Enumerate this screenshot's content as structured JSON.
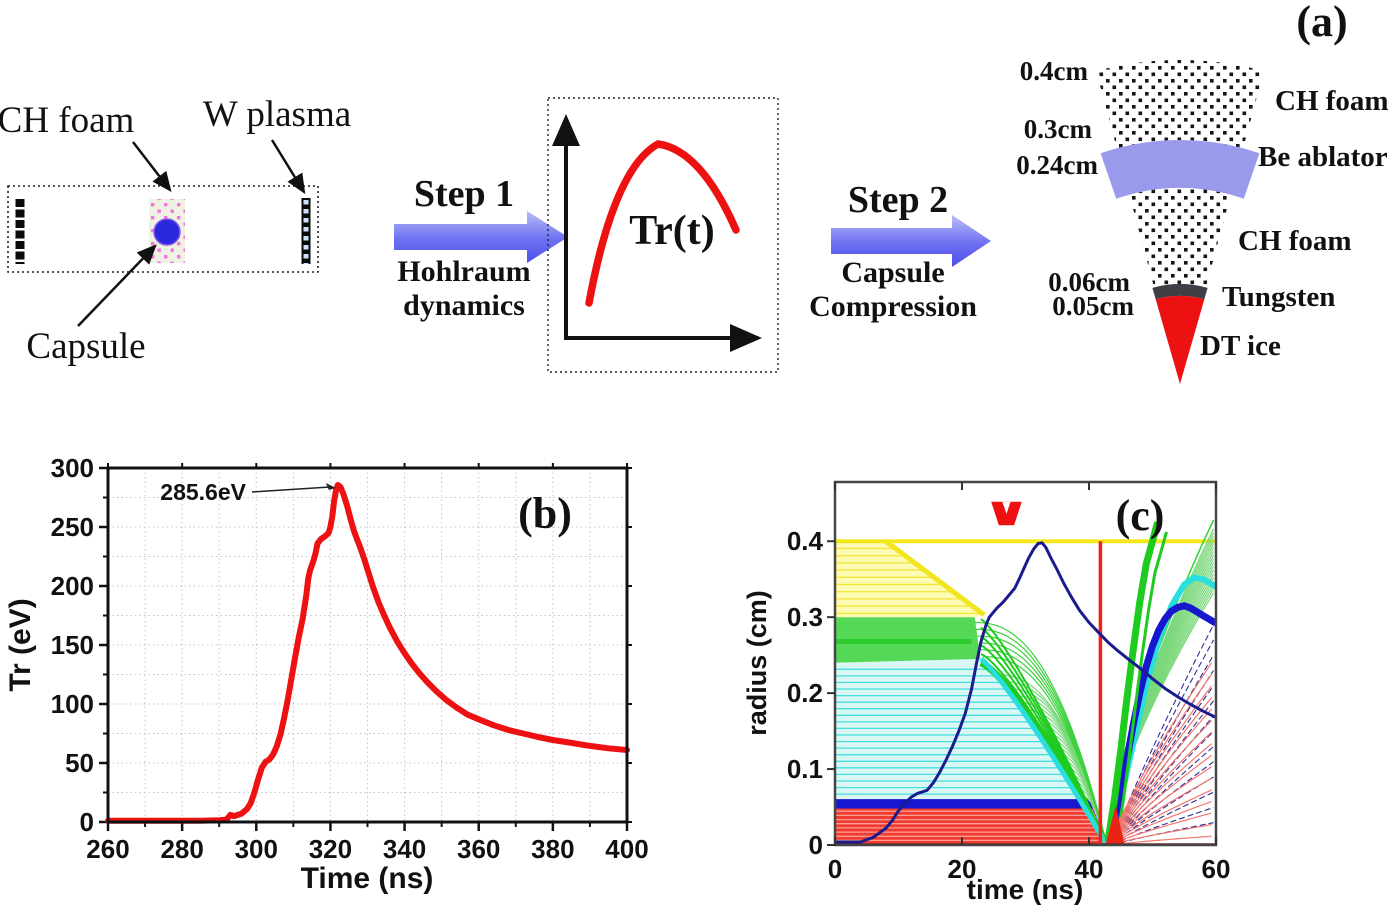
{
  "schematic": {
    "labels": {
      "ch_foam": "CH foam",
      "w_plasma": "W plasma",
      "capsule": "Capsule"
    },
    "step1": {
      "title": "Step 1",
      "caption1": "Hohlraum",
      "caption2": "dynamics"
    },
    "step2": {
      "title": "Step 2",
      "caption1": "Capsule",
      "caption2": "Compression"
    },
    "tr_sketch_label": "Tr(t)",
    "arrow_color_light": "#b7bdf6",
    "arrow_color_dark": "#4d4fe8"
  },
  "capsule_diagram": {
    "panel_label": "(a)",
    "radii_labels": [
      "0.4cm",
      "0.3cm",
      "0.24cm",
      "0.06cm",
      "0.05cm"
    ],
    "layer_labels": [
      "CH foam",
      "Be ablator",
      "CH foam",
      "Tungsten",
      "DT ice"
    ],
    "colors": {
      "be_ablator": "#9a9aec",
      "tungsten": "#3f3f46",
      "dt_ice": "#ee1111"
    }
  },
  "chart_data": [
    {
      "type": "line",
      "panel": "(b)",
      "xlabel": "Time (ns)",
      "ylabel": "Tr (eV)",
      "xlim": [
        260,
        400
      ],
      "ylim": [
        0,
        300
      ],
      "xticks": [
        260,
        280,
        300,
        320,
        340,
        360,
        380,
        400
      ],
      "yticks": [
        0,
        50,
        100,
        150,
        200,
        250,
        300
      ],
      "xminor_step": 10,
      "yminor_step": 25,
      "grid": true,
      "line_color": "#ee1111",
      "annotation": {
        "text": "285.6eV",
        "peak_t": 322,
        "peak_v": 285.6
      },
      "series": [
        {
          "name": "Tr",
          "points": [
            [
              260,
              1
            ],
            [
              285,
              1
            ],
            [
              290,
              1.5
            ],
            [
              292,
              2
            ],
            [
              293,
              6
            ],
            [
              294,
              5
            ],
            [
              296,
              7
            ],
            [
              297.5,
              11
            ],
            [
              298.5,
              16
            ],
            [
              299.5,
              25
            ],
            [
              300.5,
              36
            ],
            [
              301.5,
              46
            ],
            [
              302.5,
              51
            ],
            [
              303.5,
              53
            ],
            [
              304.5,
              57
            ],
            [
              305.5,
              64
            ],
            [
              306.5,
              74
            ],
            [
              307.5,
              88
            ],
            [
              308.5,
              104
            ],
            [
              309.5,
              122
            ],
            [
              310.5,
              140
            ],
            [
              311.5,
              157
            ],
            [
              312.5,
              172
            ],
            [
              313.5,
              192
            ],
            [
              314,
              206
            ],
            [
              314.5,
              213
            ],
            [
              315.5,
              222
            ],
            [
              316,
              228
            ],
            [
              316.5,
              236
            ],
            [
              317.5,
              240
            ],
            [
              318.5,
              242
            ],
            [
              319.5,
              245
            ],
            [
              320,
              250
            ],
            [
              320.5,
              259
            ],
            [
              321,
              272
            ],
            [
              321.5,
              281
            ],
            [
              322,
              285.6
            ],
            [
              322.7,
              284
            ],
            [
              323.5,
              278
            ],
            [
              324.5,
              268
            ],
            [
              325.5,
              256
            ],
            [
              326.3,
              247
            ],
            [
              327,
              241
            ],
            [
              328,
              233
            ],
            [
              329,
              224
            ],
            [
              330,
              214
            ],
            [
              331.5,
              199
            ],
            [
              333,
              186
            ],
            [
              334.5,
              175
            ],
            [
              336,
              165
            ],
            [
              338,
              153
            ],
            [
              340,
              143
            ],
            [
              342,
              134
            ],
            [
              344,
              126
            ],
            [
              346,
              119
            ],
            [
              348.5,
              111
            ],
            [
              351,
              104
            ],
            [
              354,
              97
            ],
            [
              357,
              91
            ],
            [
              360,
              87
            ],
            [
              364,
              82
            ],
            [
              368,
              78
            ],
            [
              372,
              75
            ],
            [
              376,
              72
            ],
            [
              380,
              69.5
            ],
            [
              385,
              67
            ],
            [
              390,
              64.5
            ],
            [
              395,
              62.5
            ],
            [
              400,
              61
            ]
          ]
        }
      ]
    },
    {
      "type": "line",
      "panel": "(c)",
      "xlabel": "time (ns)",
      "ylabel": "radius (cm)",
      "xlim": [
        0,
        60
      ],
      "ylim": [
        0,
        0.478
      ],
      "xticks": [
        0,
        20,
        40,
        60
      ],
      "yticks": [
        0,
        0.1,
        0.2,
        0.3,
        0.4
      ],
      "layers": [
        {
          "name": "DT ice",
          "r": [
            0,
            0.05
          ],
          "fill": "#ef3b30",
          "line": "#ff9d94"
        },
        {
          "name": "Tungsten",
          "r": [
            0.05,
            0.06
          ],
          "fill": "#1717cf",
          "line": "#1717cf"
        },
        {
          "name": "CH foam",
          "r": [
            0.06,
            0.24
          ],
          "fill": "#d9f7f5",
          "line": "#46dede"
        },
        {
          "name": "Be ablator",
          "r": [
            0.24,
            0.3
          ],
          "fill": "#55d855",
          "line": "#2ecb2e"
        },
        {
          "name": "CH foam outer",
          "r": [
            0.3,
            0.4
          ],
          "fill": "#fdfbb4",
          "line": "#f1e83c"
        }
      ],
      "events": {
        "stagnation_ns": 42.8,
        "vline_ns": 41.8
      },
      "streak": {
        "t1": 8,
        "r1": 0.4,
        "t2": 23.5,
        "r2": 0.303
      },
      "shell": {
        "t0": 23,
        "dur": 19.8,
        "r0": 0.24,
        "p": 1.3
      },
      "front": {
        "t0": 23,
        "dur": 19.8,
        "r0": 0.245,
        "p": 1.15
      },
      "foam_tracks": {
        "count": 18,
        "r0_start": 0.068,
        "r0_step": 0.0092
      },
      "green_tracks": [
        0.248,
        0.257,
        0.266,
        0.275,
        0.284,
        0.293
      ],
      "navy_fan": {
        "count": 14,
        "t0": 43.6,
        "r_end_min": 0.03,
        "r_end_step": 0.0205
      },
      "red_fan": {
        "count": 16,
        "t0": 43.3,
        "r_end_min": 0.012,
        "r_end_step": 0.0158
      },
      "rebounds": {
        "blue": [
          [
            43.2,
            0.004
          ],
          [
            44,
            0.03
          ],
          [
            45,
            0.07
          ],
          [
            46,
            0.115
          ],
          [
            47,
            0.16
          ],
          [
            48,
            0.2
          ],
          [
            49,
            0.235
          ],
          [
            50,
            0.262
          ],
          [
            51,
            0.283
          ],
          [
            52,
            0.298
          ],
          [
            53,
            0.308
          ],
          [
            54,
            0.313
          ],
          [
            55,
            0.315
          ],
          [
            56,
            0.312
          ],
          [
            57,
            0.307
          ],
          [
            58,
            0.302
          ],
          [
            59,
            0.297
          ],
          [
            60,
            0.292
          ]
        ],
        "cyan": [
          [
            43.4,
            0.004
          ],
          [
            45,
            0.06
          ],
          [
            47,
            0.135
          ],
          [
            49,
            0.21
          ],
          [
            51,
            0.27
          ],
          [
            53,
            0.315
          ],
          [
            55,
            0.343
          ],
          [
            56.5,
            0.352
          ],
          [
            58,
            0.35
          ],
          [
            60,
            0.34
          ]
        ],
        "green": [
          [
            43,
            0.005
          ],
          [
            44,
            0.06
          ],
          [
            45,
            0.125
          ],
          [
            46,
            0.195
          ],
          [
            47,
            0.26
          ],
          [
            48,
            0.32
          ],
          [
            49,
            0.37
          ],
          [
            50,
            0.4
          ],
          [
            50.8,
            0.425
          ]
        ]
      },
      "marker_points": [
        [
          24.6,
          0.452
        ],
        [
          29.4,
          0.452
        ],
        [
          28.2,
          0.421
        ],
        [
          25.8,
          0.421
        ]
      ],
      "trajectory": [
        [
          0,
          0.004
        ],
        [
          4,
          0.004
        ],
        [
          6,
          0.01
        ],
        [
          8,
          0.022
        ],
        [
          9,
          0.032
        ],
        [
          10,
          0.045
        ],
        [
          11,
          0.055
        ],
        [
          12,
          0.063
        ],
        [
          13,
          0.068
        ],
        [
          14.5,
          0.072
        ],
        [
          15.5,
          0.082
        ],
        [
          16.5,
          0.096
        ],
        [
          17.5,
          0.112
        ],
        [
          18.5,
          0.13
        ],
        [
          19.5,
          0.15
        ],
        [
          20.5,
          0.173
        ],
        [
          21.5,
          0.205
        ],
        [
          22.3,
          0.24
        ],
        [
          23,
          0.268
        ],
        [
          23.8,
          0.29
        ],
        [
          24.3,
          0.3
        ],
        [
          25.5,
          0.312
        ],
        [
          26.5,
          0.32
        ],
        [
          27.5,
          0.33
        ],
        [
          28.3,
          0.338
        ],
        [
          29,
          0.35
        ],
        [
          29.8,
          0.365
        ],
        [
          30.5,
          0.378
        ],
        [
          31.3,
          0.39
        ],
        [
          32,
          0.397
        ],
        [
          32.6,
          0.398
        ],
        [
          33.2,
          0.392
        ],
        [
          34,
          0.378
        ],
        [
          35,
          0.362
        ],
        [
          36,
          0.345
        ],
        [
          37.2,
          0.327
        ],
        [
          38.5,
          0.309
        ],
        [
          40,
          0.293
        ],
        [
          41.5,
          0.28
        ],
        [
          43,
          0.267
        ],
        [
          44.5,
          0.256
        ],
        [
          46,
          0.246
        ],
        [
          48,
          0.233
        ],
        [
          50,
          0.219
        ],
        [
          52,
          0.206
        ],
        [
          54,
          0.195
        ],
        [
          56,
          0.185
        ],
        [
          58,
          0.176
        ],
        [
          60,
          0.168
        ]
      ]
    }
  ]
}
